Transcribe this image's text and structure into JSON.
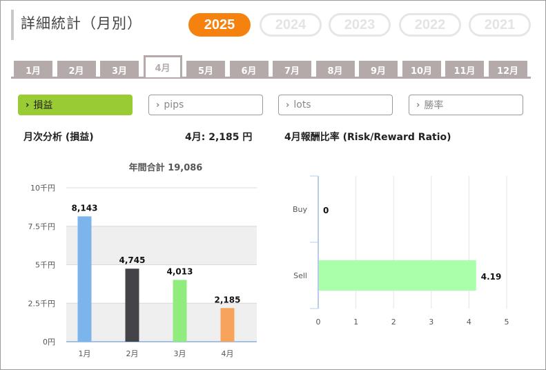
{
  "page_title": "詳細統計（月別）",
  "years": [
    {
      "label": "2025",
      "active": true
    },
    {
      "label": "2024",
      "active": false
    },
    {
      "label": "2023",
      "active": false
    },
    {
      "label": "2022",
      "active": false
    },
    {
      "label": "2021",
      "active": false
    }
  ],
  "months": [
    {
      "label": "1月",
      "active": false
    },
    {
      "label": "2月",
      "active": false
    },
    {
      "label": "3月",
      "active": false
    },
    {
      "label": "4月",
      "active": true
    },
    {
      "label": "5月",
      "active": false
    },
    {
      "label": "6月",
      "active": false
    },
    {
      "label": "7月",
      "active": false
    },
    {
      "label": "8月",
      "active": false
    },
    {
      "label": "9月",
      "active": false
    },
    {
      "label": "10月",
      "active": false
    },
    {
      "label": "11月",
      "active": false
    },
    {
      "label": "12月",
      "active": false
    }
  ],
  "metrics": [
    {
      "label": "損益",
      "active": true
    },
    {
      "label": "pips",
      "active": false
    },
    {
      "label": "lots",
      "active": false
    },
    {
      "label": "勝率",
      "active": false
    }
  ],
  "left_section": {
    "heading": "月次分析 (損益)",
    "current_label": "4月: 2,185 円"
  },
  "right_section": {
    "heading": "4月報酬比率 (Risk/Reward Ratio)"
  },
  "colors": {
    "accent_orange": "#f5820f",
    "accent_green": "#99cc33",
    "tab_grey": "#b3aaa9"
  },
  "chart_data": [
    {
      "type": "bar",
      "title": "年間合計 19,086",
      "categories": [
        "1月",
        "2月",
        "3月",
        "4月"
      ],
      "values": [
        8143,
        4745,
        4013,
        2185
      ],
      "value_labels": [
        "8,143",
        "4,745",
        "4,013",
        "2,185"
      ],
      "bar_colors": [
        "#7cb5ec",
        "#434348",
        "#90ed7d",
        "#f7a35c"
      ],
      "ylim": [
        0,
        10000
      ],
      "y_ticks": [
        0,
        2500,
        5000,
        7500,
        10000
      ],
      "y_tick_labels": [
        "0円",
        "2.5千円",
        "5千円",
        "7.5千円",
        "10千円"
      ],
      "xlabel": "",
      "ylabel": "",
      "grid": "alternating bands"
    },
    {
      "type": "bar",
      "orientation": "horizontal",
      "title": "",
      "categories": [
        "Buy",
        "Sell"
      ],
      "values": [
        0,
        4.19
      ],
      "value_labels": [
        "0",
        "4.19"
      ],
      "bar_colors": [
        "#aaffaa",
        "#aaffaa"
      ],
      "xlim": [
        0,
        5
      ],
      "x_ticks": [
        0,
        1,
        2,
        3,
        4,
        5
      ],
      "grid": true
    }
  ]
}
